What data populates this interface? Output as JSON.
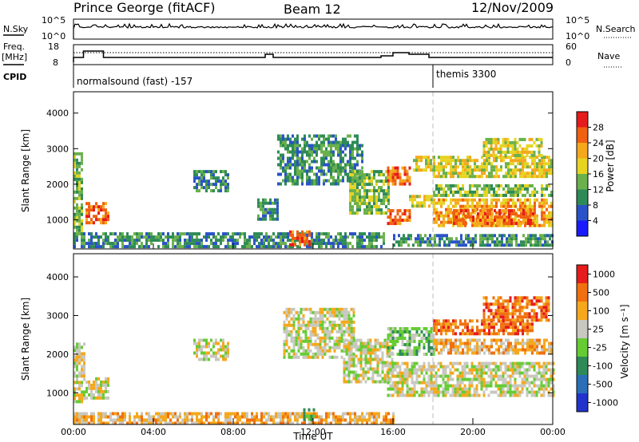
{
  "header": {
    "station": "Prince George (fitACF)",
    "beam": "Beam 12",
    "date": "12/Nov/2009"
  },
  "strip1": {
    "left_label": "N.Sky",
    "right_label": "N.Search",
    "left_ticks": [
      "10^5",
      "10^0"
    ],
    "right_ticks": [
      "10^5",
      "10^0"
    ]
  },
  "strip2": {
    "left_label_1": "Freq.",
    "left_label_2": "[MHz]",
    "right_label": "Nave",
    "left_ticks": [
      "18",
      "8"
    ],
    "right_ticks": [
      "60",
      "0"
    ],
    "cpid_label": "CPID"
  },
  "cpid": [
    {
      "start_hour": 0,
      "label": "normalsound (fast) -157"
    },
    {
      "start_hour": 18,
      "label": "themis 3300"
    }
  ],
  "panel_power": {
    "ylabel": "Slant Range [km]",
    "yticks": [
      "4000",
      "3000",
      "2000",
      "1000"
    ],
    "colorbar_label": "Power [dB]",
    "colorbar_ticks": [
      "28",
      "24",
      "20",
      "16",
      "12",
      "8",
      "4"
    ],
    "colors": [
      "#1a1aff",
      "#2a52c8",
      "#2e8b57",
      "#6ab04c",
      "#e6d421",
      "#f5a81c",
      "#f06010",
      "#e61b1b"
    ]
  },
  "panel_velocity": {
    "ylabel": "Slant Range [km]",
    "yticks": [
      "4000",
      "3000",
      "2000",
      "1000"
    ],
    "colorbar_label": "Velocity [m s⁻¹]",
    "colorbar_ticks": [
      "1000",
      "500",
      "100",
      "25",
      "-25",
      "-100",
      "-500",
      "-1000"
    ],
    "colors": [
      "#2233cc",
      "#2a6fb8",
      "#2e8b57",
      "#66cc33",
      "#c8c8c0",
      "#f5a81c",
      "#f07010",
      "#e61b1b"
    ]
  },
  "xaxis": {
    "ticks": [
      "00:00",
      "04:00",
      "08:00",
      "12:00",
      "16:00",
      "20:00",
      "00:00"
    ],
    "label": "Time UT"
  },
  "chart_data": {
    "type": "heatmap",
    "x_range_hours": [
      0,
      24
    ],
    "y_range_km": [
      180,
      4600
    ],
    "power": {
      "clim_db": [
        0,
        32
      ],
      "regions": [
        {
          "t0": 0.0,
          "t1": 0.4,
          "r0": 600,
          "r1": 2900,
          "level": 3
        },
        {
          "t0": 0.6,
          "t1": 1.8,
          "r0": 900,
          "r1": 1500,
          "level": 6
        },
        {
          "t0": 0.0,
          "t1": 15.5,
          "r0": 250,
          "r1": 650,
          "level": 2
        },
        {
          "t0": 10.8,
          "t1": 11.8,
          "r0": 300,
          "r1": 700,
          "level": 6
        },
        {
          "t0": 6.0,
          "t1": 7.8,
          "r0": 1800,
          "r1": 2400,
          "level": 2
        },
        {
          "t0": 9.2,
          "t1": 10.2,
          "r0": 1000,
          "r1": 1600,
          "level": 2
        },
        {
          "t0": 10.2,
          "t1": 14.5,
          "r0": 2000,
          "r1": 3400,
          "level": 2
        },
        {
          "t0": 13.8,
          "t1": 15.8,
          "r0": 1200,
          "r1": 2400,
          "level": 3
        },
        {
          "t0": 15.7,
          "t1": 16.8,
          "r0": 2000,
          "r1": 2500,
          "level": 6
        },
        {
          "t0": 15.7,
          "t1": 16.8,
          "r0": 900,
          "r1": 1300,
          "level": 6
        },
        {
          "t0": 16.8,
          "t1": 18.0,
          "r0": 1400,
          "r1": 1700,
          "level": 4
        },
        {
          "t0": 17.0,
          "t1": 18.0,
          "r0": 2400,
          "r1": 2800,
          "level": 4
        },
        {
          "t0": 18.0,
          "t1": 24.0,
          "r0": 800,
          "r1": 1600,
          "level": 5
        },
        {
          "t0": 19.0,
          "t1": 23.0,
          "r0": 900,
          "r1": 1300,
          "level": 6
        },
        {
          "t0": 18.0,
          "t1": 24.0,
          "r0": 1700,
          "r1": 2000,
          "level": 3
        },
        {
          "t0": 18.0,
          "t1": 24.0,
          "r0": 2200,
          "r1": 2800,
          "level": 4
        },
        {
          "t0": 20.5,
          "t1": 23.5,
          "r0": 2800,
          "r1": 3300,
          "level": 4
        },
        {
          "t0": 16.0,
          "t1": 24.0,
          "r0": 250,
          "r1": 600,
          "level": 2
        }
      ]
    },
    "velocity": {
      "clim_ms": [
        -1000,
        1000
      ],
      "regions": [
        {
          "t0": 0.0,
          "t1": 0.6,
          "r0": 800,
          "r1": 2300,
          "level": 4
        },
        {
          "t0": 0.6,
          "t1": 1.8,
          "r0": 900,
          "r1": 1400,
          "level": 4
        },
        {
          "t0": 0.0,
          "t1": 16.0,
          "r0": 220,
          "r1": 500,
          "level": 5
        },
        {
          "t0": 6.0,
          "t1": 7.8,
          "r0": 1900,
          "r1": 2400,
          "level": 4
        },
        {
          "t0": 10.5,
          "t1": 14.0,
          "r0": 1900,
          "r1": 3200,
          "level": 4
        },
        {
          "t0": 13.5,
          "t1": 16.0,
          "r0": 1300,
          "r1": 2400,
          "level": 4
        },
        {
          "t0": 15.7,
          "t1": 24.0,
          "r0": 900,
          "r1": 1800,
          "level": 4
        },
        {
          "t0": 15.7,
          "t1": 18.0,
          "r0": 2000,
          "r1": 2700,
          "level": 3
        },
        {
          "t0": 18.0,
          "t1": 23.0,
          "r0": 2500,
          "r1": 2900,
          "level": 6
        },
        {
          "t0": 20.5,
          "t1": 23.8,
          "r0": 2900,
          "r1": 3500,
          "level": 6
        },
        {
          "t0": 18.0,
          "t1": 24.0,
          "r0": 2000,
          "r1": 2400,
          "level": 5
        },
        {
          "t0": 11.5,
          "t1": 12.0,
          "r0": 300,
          "r1": 600,
          "level": 2
        }
      ]
    }
  }
}
